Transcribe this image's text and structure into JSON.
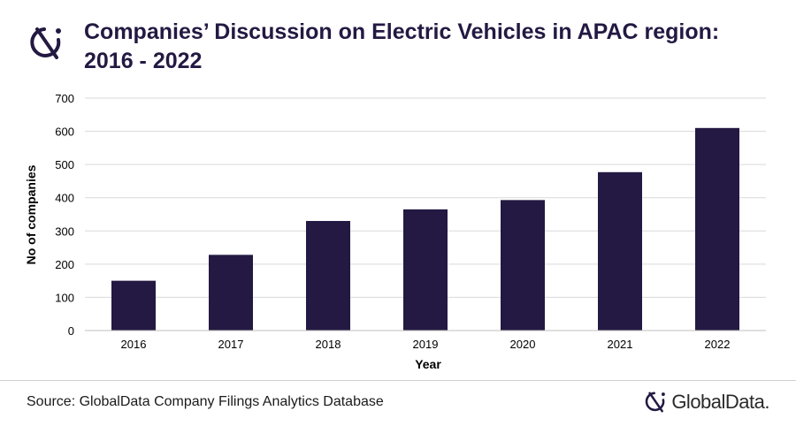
{
  "title_line1": "Companies’ Discussion on Electric Vehicles in APAC region:",
  "title_line2": "2016 - 2022",
  "icons": {
    "header_logo": "globaldata-logo-icon",
    "footer_logo": "globaldata-logo-icon"
  },
  "colors": {
    "bar": "#231942",
    "title": "#231942",
    "grid": "#d9d9d9"
  },
  "source": "Source: GlobalData Company Filings Analytics Database",
  "brand_name": "GlobalData.",
  "chart_data": {
    "type": "bar",
    "categories": [
      "2016",
      "2017",
      "2018",
      "2019",
      "2020",
      "2021",
      "2022"
    ],
    "values": [
      150,
      228,
      330,
      365,
      393,
      477,
      610
    ],
    "xlabel": "Year",
    "ylabel": "No of companies",
    "ylim": [
      0,
      700
    ],
    "yticks": [
      0,
      100,
      200,
      300,
      400,
      500,
      600,
      700
    ],
    "grid": true,
    "legend": "none"
  }
}
